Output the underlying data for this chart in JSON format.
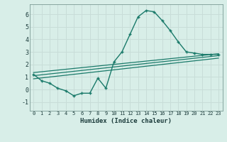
{
  "title": "",
  "xlabel": "Humidex (Indice chaleur)",
  "ylabel": "",
  "background_color": "#d8eee8",
  "grid_color": "#c8ddd8",
  "line_color": "#1a7a6a",
  "xlim": [
    -0.5,
    23.5
  ],
  "ylim": [
    -1.7,
    6.8
  ],
  "yticks": [
    -1,
    0,
    1,
    2,
    3,
    4,
    5,
    6
  ],
  "xticks": [
    0,
    1,
    2,
    3,
    4,
    5,
    6,
    7,
    8,
    9,
    10,
    11,
    12,
    13,
    14,
    15,
    16,
    17,
    18,
    19,
    20,
    21,
    22,
    23
  ],
  "curve1_x": [
    0,
    1,
    2,
    3,
    4,
    5,
    6,
    7,
    8,
    9,
    10,
    11,
    12,
    13,
    14,
    15,
    16,
    17,
    18,
    19,
    20,
    21,
    22,
    23
  ],
  "curve1_y": [
    1.2,
    0.7,
    0.5,
    0.1,
    -0.1,
    -0.5,
    -0.3,
    -0.3,
    0.9,
    0.1,
    2.2,
    3.0,
    4.4,
    5.8,
    6.3,
    6.2,
    5.5,
    4.7,
    3.8,
    3.0,
    2.9,
    2.8,
    2.8,
    2.8
  ],
  "line1_x": [
    0,
    23
  ],
  "line1_y": [
    1.1,
    2.7
  ],
  "line2_x": [
    0,
    23
  ],
  "line2_y": [
    1.35,
    2.85
  ],
  "line3_x": [
    0,
    23
  ],
  "line3_y": [
    0.85,
    2.5
  ]
}
